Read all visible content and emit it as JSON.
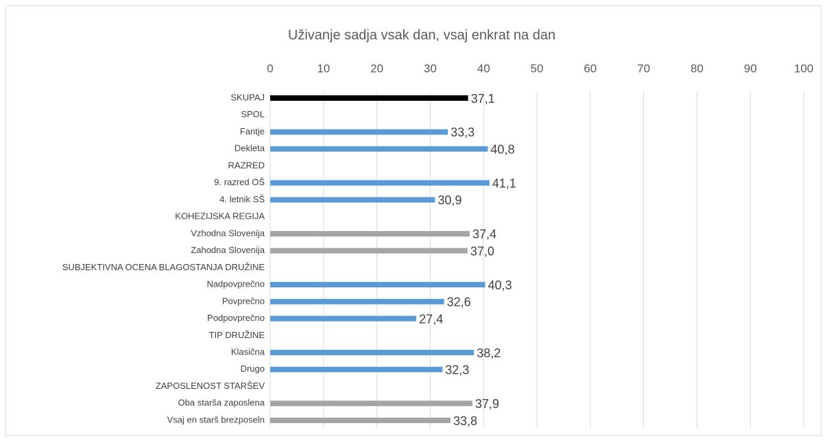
{
  "chart_data": {
    "type": "bar",
    "orientation": "horizontal",
    "title": "Uživanje sadja vsak dan, vsaj enkrat na dan",
    "categories": [
      "SKUPAJ",
      "SPOL",
      "Fantje",
      "Dekleta",
      "RAZRED",
      "9. razred OŠ",
      "4. letnik SŠ",
      "KOHEZIJSKA REGIJA",
      "Vzhodna Slovenija",
      "Zahodna Slovenija",
      "SUBJEKTIVNA OCENA BLAGOSTANJA DRUŽINE",
      "Nadpovprečno",
      "Povprečno",
      "Podpovprečno",
      "TIP DRUŽINE",
      "Klasična",
      "Drugo",
      "ZAPOSLENOST STARŠEV",
      "Oba starša zaposlena",
      "Vsaj en starš brezposeln"
    ],
    "values": [
      37.1,
      null,
      33.3,
      40.8,
      null,
      41.1,
      30.9,
      null,
      37.4,
      37.0,
      null,
      40.3,
      32.6,
      27.4,
      null,
      38.2,
      32.3,
      null,
      37.9,
      33.8
    ],
    "value_labels": [
      "37,1",
      null,
      "33,3",
      "40,8",
      null,
      "41,1",
      "30,9",
      null,
      "37,4",
      "37,0",
      null,
      "40,3",
      "32,6",
      "27,4",
      null,
      "38,2",
      "32,3",
      null,
      "37,9",
      "33,8"
    ],
    "colors": [
      "#000000",
      null,
      "#5b9bd5",
      "#5b9bd5",
      null,
      "#5b9bd5",
      "#5b9bd5",
      null,
      "#a5a5a5",
      "#a5a5a5",
      null,
      "#5b9bd5",
      "#5b9bd5",
      "#5b9bd5",
      null,
      "#5b9bd5",
      "#5b9bd5",
      null,
      "#a5a5a5",
      "#a5a5a5"
    ],
    "xlim": [
      0,
      100
    ],
    "xticks": [
      0,
      10,
      20,
      30,
      40,
      50,
      60,
      70,
      80,
      90,
      100
    ],
    "grid": true
  }
}
